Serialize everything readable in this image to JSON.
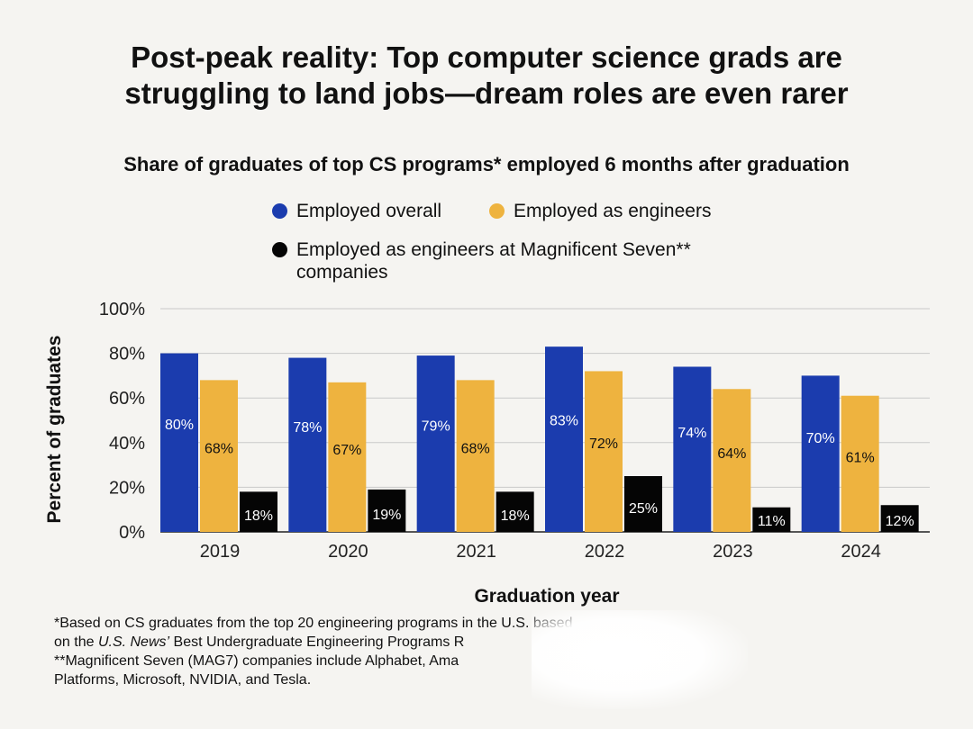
{
  "title_lines": [
    "Post-peak reality: Top computer science grads are",
    "struggling to land jobs—dream roles are even rarer"
  ],
  "chart_data": {
    "type": "bar",
    "title": "Share of graduates of top CS programs* employed 6 months after graduation",
    "categories": [
      "2019",
      "2020",
      "2021",
      "2022",
      "2023",
      "2024"
    ],
    "series": [
      {
        "name": "Employed overall",
        "color": "#1b3cae",
        "label_color": "#ffffff",
        "values": [
          80,
          78,
          79,
          83,
          74,
          70
        ]
      },
      {
        "name": "Employed as engineers",
        "color": "#eeb33f",
        "label_color": "#111111",
        "values": [
          68,
          67,
          68,
          72,
          64,
          61
        ]
      },
      {
        "name": "Employed as engineers at Magnificent Seven** companies",
        "color": "#050505",
        "label_color": "#ffffff",
        "values": [
          18,
          19,
          18,
          25,
          11,
          12
        ]
      }
    ],
    "legend_line1": "Employed as engineers at Magnificent Seven**",
    "legend_line2": "companies",
    "xlabel": "Graduation year",
    "ylabel": "Percent of graduates",
    "ylim": [
      0,
      100
    ],
    "yticks": [
      0,
      20,
      40,
      60,
      80,
      100
    ],
    "ytick_suffix": "%",
    "grid": true
  },
  "footnotes": [
    "*Based on CS graduates from the top 20 engineering programs in the U.S. based",
    "Best Undergraduate Engineering Programs R",
    "**Magnificent Seven (MAG7) companies include Alphabet, Ama",
    "Platforms, Microsoft, NVIDIA, and Tesla."
  ],
  "footnote_line2_prefix": "on the ",
  "footnote_line2_italic": "U.S. News’"
}
